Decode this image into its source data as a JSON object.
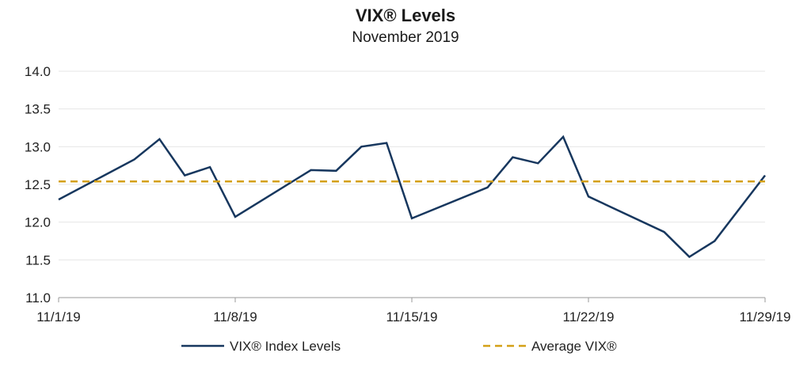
{
  "chart_data": {
    "type": "line",
    "title": "VIX® Levels",
    "subtitle": "November 2019",
    "xlabel": "",
    "ylabel": "",
    "ylim": [
      11.0,
      14.0
    ],
    "yticks": [
      "14.0",
      "13.5",
      "13.0",
      "12.5",
      "12.0",
      "11.5",
      "11.0"
    ],
    "xticks": [
      "11/1/19",
      "11/8/19",
      "11/15/19",
      "11/22/19",
      "11/29/19"
    ],
    "grid": "horizontal",
    "legend_position": "bottom",
    "series": [
      {
        "name": "VIX® Index Levels",
        "color": "#17375e",
        "style": "solid",
        "x": [
          "2019-11-01",
          "2019-11-04",
          "2019-11-05",
          "2019-11-06",
          "2019-11-07",
          "2019-11-08",
          "2019-11-11",
          "2019-11-12",
          "2019-11-13",
          "2019-11-14",
          "2019-11-15",
          "2019-11-18",
          "2019-11-19",
          "2019-11-20",
          "2019-11-21",
          "2019-11-22",
          "2019-11-25",
          "2019-11-26",
          "2019-11-27",
          "2019-11-29"
        ],
        "values": [
          12.3,
          12.83,
          13.1,
          12.62,
          12.73,
          12.07,
          12.69,
          12.68,
          13.0,
          13.05,
          12.05,
          12.46,
          12.86,
          12.78,
          13.13,
          12.34,
          11.87,
          11.54,
          11.75,
          12.62
        ]
      },
      {
        "name": "Average VIX®",
        "color": "#d4a017",
        "style": "dashed",
        "x": [
          "2019-11-01",
          "2019-11-29"
        ],
        "values": [
          12.54,
          12.54
        ]
      }
    ]
  }
}
